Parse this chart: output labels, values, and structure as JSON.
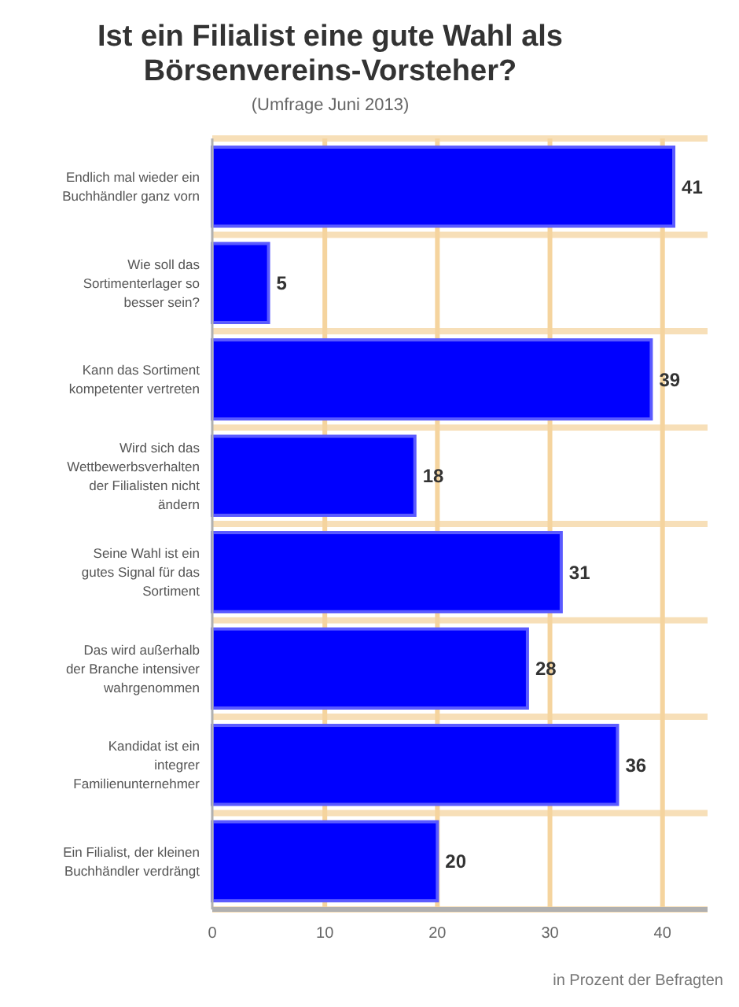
{
  "chart_data": {
    "type": "bar",
    "orientation": "horizontal",
    "title": "Ist ein Filialist eine gute Wahl als Börsenvereins-Vorsteher?",
    "subtitle": "(Umfrage Juni 2013)",
    "categories": [
      "Endlich mal wieder ein Buchhändler ganz vorn",
      "Wie soll das Sortimenterlager so besser sein?",
      "Kann das Sortiment kompetenter vertreten",
      "Wird sich das Wettbewerbsverhalten der Filialisten nicht ändern",
      "Seine Wahl ist ein gutes Signal für das Sortiment",
      "Das wird außerhalb der Branche intensiver wahrgenommen",
      "Kandidat ist ein integrer Familienunternehmer",
      "Ein Filialist, der kleinen Buchhändler verdrängt"
    ],
    "values": [
      41,
      5,
      39,
      18,
      31,
      28,
      36,
      20
    ],
    "color": "#0000ff",
    "xlim": [
      0,
      44
    ],
    "xticks": [
      0,
      10,
      20,
      30,
      40
    ],
    "grid": true,
    "data_labels": true,
    "annotations": [
      "in Prozent der Befragten"
    ]
  }
}
